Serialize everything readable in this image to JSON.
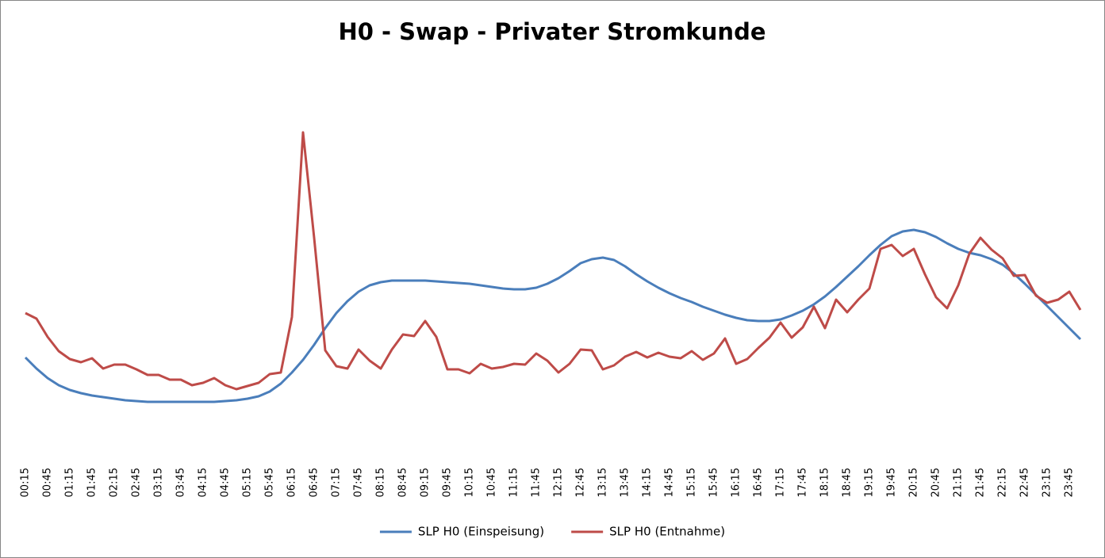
{
  "chart_data": {
    "type": "line",
    "title": "H0 - Swap - Privater Stromkunde",
    "categories": [
      "00:15",
      null,
      "00:45",
      null,
      "01:15",
      null,
      "01:45",
      null,
      "02:15",
      null,
      "02:45",
      null,
      "03:15",
      null,
      "03:45",
      null,
      "04:15",
      null,
      "04:45",
      null,
      "05:15",
      null,
      "05:45",
      null,
      "06:15",
      null,
      "06:45",
      null,
      "07:15",
      null,
      "07:45",
      null,
      "08:15",
      null,
      "08:45",
      null,
      "09:15",
      null,
      "09:45",
      null,
      "10:15",
      null,
      "10:45",
      null,
      "11:15",
      null,
      "11:45",
      null,
      "12:15",
      null,
      "12:45",
      null,
      "13:15",
      null,
      "13:45",
      null,
      "14:15",
      null,
      "14:45",
      null,
      "15:15",
      null,
      "15:45",
      null,
      "16:15",
      null,
      "16:45",
      null,
      "17:15",
      null,
      "17:45",
      null,
      "18:15",
      null,
      "18:45",
      null,
      "19:15",
      null,
      "19:45",
      null,
      "20:15",
      null,
      "20:45",
      null,
      "21:15",
      null,
      "21:45",
      null,
      "22:15",
      null,
      "22:45",
      null,
      "23:15",
      null,
      "23:45",
      null
    ],
    "series": [
      {
        "name": "SLP H0 (Einspeisung)",
        "color": "#4a7ebb",
        "values": [
          119,
          105,
          93,
          84,
          78,
          74,
          71,
          69,
          67,
          65,
          64,
          63,
          63,
          63,
          63,
          63,
          63,
          63,
          64,
          65,
          67,
          70,
          76,
          86,
          100,
          116,
          135,
          156,
          175,
          190,
          202,
          210,
          214,
          216,
          216,
          216,
          216,
          215,
          214,
          213,
          212,
          210,
          208,
          206,
          205,
          205,
          207,
          212,
          219,
          228,
          238,
          243,
          245,
          242,
          234,
          224,
          215,
          207,
          200,
          194,
          189,
          183,
          178,
          173,
          169,
          166,
          165,
          165,
          167,
          172,
          178,
          186,
          196,
          208,
          221,
          234,
          248,
          261,
          272,
          278,
          280,
          277,
          271,
          263,
          256,
          251,
          248,
          243,
          236,
          225,
          212,
          198,
          184,
          170,
          156,
          142
        ]
      },
      {
        "name": "SLP H0 (Entnahme)",
        "color": "#be4b48",
        "values": [
          175,
          168,
          145,
          127,
          117,
          113,
          118,
          105,
          110,
          110,
          104,
          97,
          97,
          91,
          91,
          84,
          87,
          93,
          84,
          79,
          83,
          87,
          98,
          100,
          170,
          403,
          270,
          128,
          108,
          105,
          129,
          115,
          105,
          129,
          148,
          146,
          165,
          145,
          104,
          104,
          99,
          111,
          105,
          107,
          111,
          110,
          124,
          115,
          100,
          111,
          129,
          128,
          104,
          109,
          120,
          126,
          119,
          125,
          120,
          118,
          127,
          116,
          124,
          143,
          111,
          117,
          131,
          144,
          163,
          144,
          157,
          183,
          156,
          192,
          176,
          192,
          206,
          256,
          261,
          247,
          256,
          224,
          195,
          181,
          210,
          250,
          270,
          255,
          244,
          222,
          223,
          197,
          188,
          192,
          202,
          179
        ]
      }
    ],
    "ylim": [
      0,
      480
    ],
    "legend": "bottom"
  }
}
